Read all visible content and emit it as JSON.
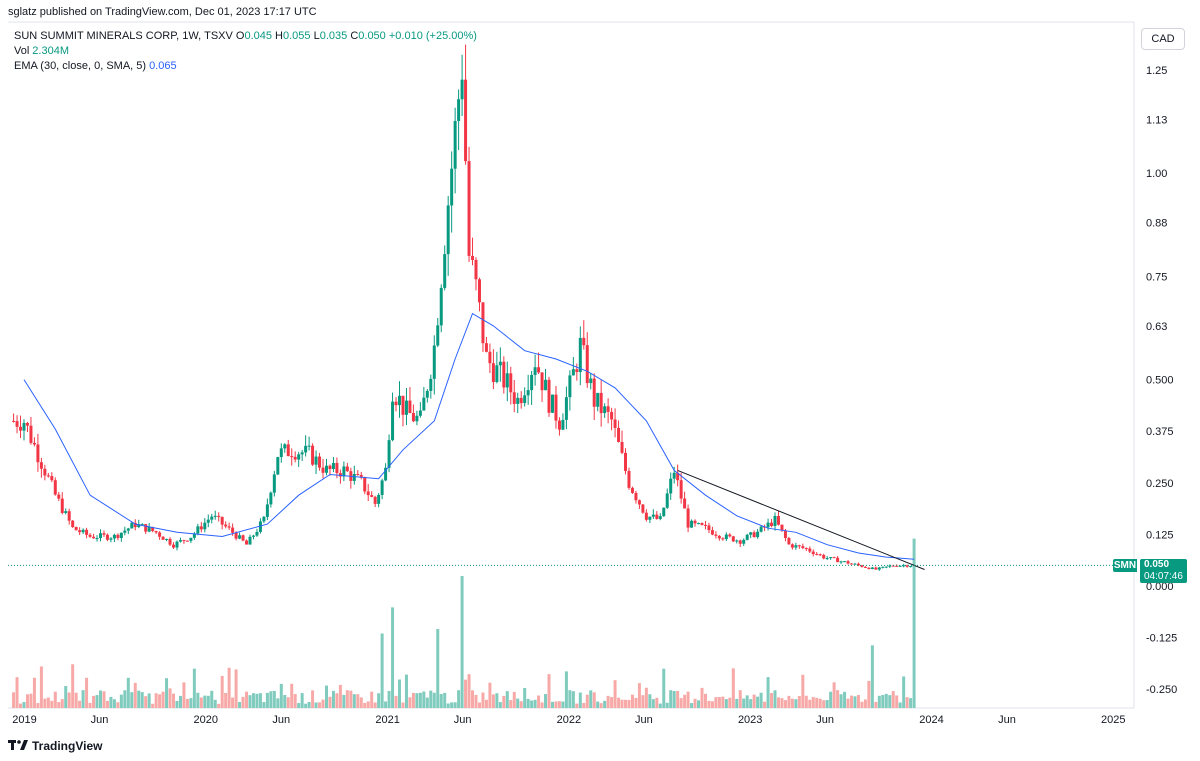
{
  "header": {
    "published_line": "sglatz published on TradingView.com, Dec 01, 2023 17:17 UTC"
  },
  "legend": {
    "symbol_line": "SUN SUMMIT MINERALS CORP, 1W, TSXV",
    "ohlc": {
      "o_label": "O",
      "o": "0.045",
      "h_label": "H",
      "h": "0.055",
      "l_label": "L",
      "l": "0.035",
      "c_label": "C",
      "c": "0.050",
      "change": "+0.010 (+25.00%)"
    },
    "vol_label": "Vol",
    "vol_value": "2.304M",
    "ema_label": "EMA (30, close, 0, SMA, 5)",
    "ema_value": "0.065"
  },
  "currency": "CAD",
  "price_badge": {
    "symbol": "SMN",
    "price": "0.050",
    "countdown": "04:07:46"
  },
  "brand": {
    "name": "TradingView",
    "logo_icon": "tradingview-logo-icon"
  },
  "colors": {
    "up": "#089981",
    "down": "#f23645",
    "up_vol": "#7fcbbd",
    "down_vol": "#f7a9a7",
    "ema": "#2962ff",
    "trend": "#131722"
  },
  "chart_data": {
    "type": "candlestick",
    "interval": "1W",
    "y_axis": {
      "ticks": [
        "1.25",
        "1.13",
        "1.00",
        "0.88",
        "0.75",
        "0.63",
        "0.500",
        "0.375",
        "0.250",
        "0.125",
        "0.000",
        "-0.125",
        "-0.250"
      ],
      "range": [
        -0.25,
        1.25
      ]
    },
    "x_axis": {
      "ticks": [
        "2019",
        "Jun",
        "2020",
        "Jun",
        "2021",
        "Jun",
        "2022",
        "Jun",
        "2023",
        "Jun",
        "2024",
        "Jun",
        "2025"
      ]
    },
    "last_price": 0.05,
    "close_path": [
      [
        "2018-12-31",
        0.4
      ],
      [
        "2019-01-28",
        0.32
      ],
      [
        "2019-03-04",
        0.22
      ],
      [
        "2019-04-08",
        0.14
      ],
      [
        "2019-05-13",
        0.12
      ],
      [
        "2019-07-01",
        0.12
      ],
      [
        "2019-08-12",
        0.15
      ],
      [
        "2019-09-23",
        0.13
      ],
      [
        "2019-10-28",
        0.1
      ],
      [
        "2019-12-02",
        0.12
      ],
      [
        "2020-01-13",
        0.17
      ],
      [
        "2020-02-24",
        0.13
      ],
      [
        "2020-03-23",
        0.1
      ],
      [
        "2020-04-27",
        0.16
      ],
      [
        "2020-05-25",
        0.32
      ],
      [
        "2020-06-22",
        0.33
      ],
      [
        "2020-07-27",
        0.32
      ],
      [
        "2020-08-31",
        0.28
      ],
      [
        "2020-10-05",
        0.28
      ],
      [
        "2020-11-09",
        0.25
      ],
      [
        "2020-12-07",
        0.2
      ],
      [
        "2020-12-28",
        0.28
      ],
      [
        "2021-01-11",
        0.48
      ],
      [
        "2021-02-08",
        0.42
      ],
      [
        "2021-03-08",
        0.4
      ],
      [
        "2021-04-05",
        0.58
      ],
      [
        "2021-04-26",
        0.85
      ],
      [
        "2021-05-17",
        1.1
      ],
      [
        "2021-05-31",
        1.27
      ],
      [
        "2021-06-14",
        0.8
      ],
      [
        "2021-06-28",
        0.72
      ],
      [
        "2021-07-19",
        0.55
      ],
      [
        "2021-08-23",
        0.5
      ],
      [
        "2021-09-20",
        0.45
      ],
      [
        "2021-10-25",
        0.55
      ],
      [
        "2021-11-22",
        0.45
      ],
      [
        "2021-12-13",
        0.4
      ],
      [
        "2022-01-03",
        0.48
      ],
      [
        "2022-01-24",
        0.58
      ],
      [
        "2022-02-21",
        0.45
      ],
      [
        "2022-03-28",
        0.4
      ],
      [
        "2022-05-02",
        0.25
      ],
      [
        "2022-06-06",
        0.17
      ],
      [
        "2022-07-04",
        0.16
      ],
      [
        "2022-08-01",
        0.28
      ],
      [
        "2022-08-29",
        0.15
      ],
      [
        "2022-10-03",
        0.14
      ],
      [
        "2022-11-07",
        0.12
      ],
      [
        "2022-12-12",
        0.11
      ],
      [
        "2023-01-16",
        0.13
      ],
      [
        "2023-02-20",
        0.16
      ],
      [
        "2023-03-20",
        0.1
      ],
      [
        "2023-04-24",
        0.09
      ],
      [
        "2023-05-29",
        0.07
      ],
      [
        "2023-07-03",
        0.06
      ],
      [
        "2023-08-07",
        0.05
      ],
      [
        "2023-09-11",
        0.04
      ],
      [
        "2023-10-16",
        0.05
      ],
      [
        "2023-11-27",
        0.05
      ]
    ],
    "ema30_path": [
      [
        "2018-12-31",
        0.5
      ],
      [
        "2019-03-04",
        0.38
      ],
      [
        "2019-05-13",
        0.22
      ],
      [
        "2019-08-12",
        0.15
      ],
      [
        "2019-11-04",
        0.13
      ],
      [
        "2020-02-03",
        0.12
      ],
      [
        "2020-05-04",
        0.15
      ],
      [
        "2020-07-06",
        0.22
      ],
      [
        "2020-09-07",
        0.27
      ],
      [
        "2020-12-14",
        0.26
      ],
      [
        "2021-02-01",
        0.33
      ],
      [
        "2021-04-05",
        0.4
      ],
      [
        "2021-05-17",
        0.55
      ],
      [
        "2021-06-21",
        0.66
      ],
      [
        "2021-08-02",
        0.63
      ],
      [
        "2021-10-04",
        0.57
      ],
      [
        "2021-12-06",
        0.55
      ],
      [
        "2022-02-07",
        0.52
      ],
      [
        "2022-04-04",
        0.48
      ],
      [
        "2022-06-06",
        0.4
      ],
      [
        "2022-08-01",
        0.28
      ],
      [
        "2022-10-03",
        0.22
      ],
      [
        "2022-12-05",
        0.17
      ],
      [
        "2023-02-06",
        0.14
      ],
      [
        "2023-04-03",
        0.13
      ],
      [
        "2023-06-05",
        0.1
      ],
      [
        "2023-08-07",
        0.08
      ],
      [
        "2023-10-02",
        0.07
      ],
      [
        "2023-11-27",
        0.065
      ]
    ],
    "trendline": [
      [
        "2022-08-08",
        0.28
      ],
      [
        "2023-12-18",
        0.04
      ]
    ],
    "volume_spikes": [
      [
        "2021-01-11",
        "high"
      ],
      [
        "2020-12-21",
        "high"
      ],
      [
        "2021-04-12",
        "high"
      ],
      [
        "2021-05-31",
        "high"
      ],
      [
        "2023-09-04",
        "high"
      ],
      [
        "2023-11-27",
        "high"
      ]
    ]
  }
}
